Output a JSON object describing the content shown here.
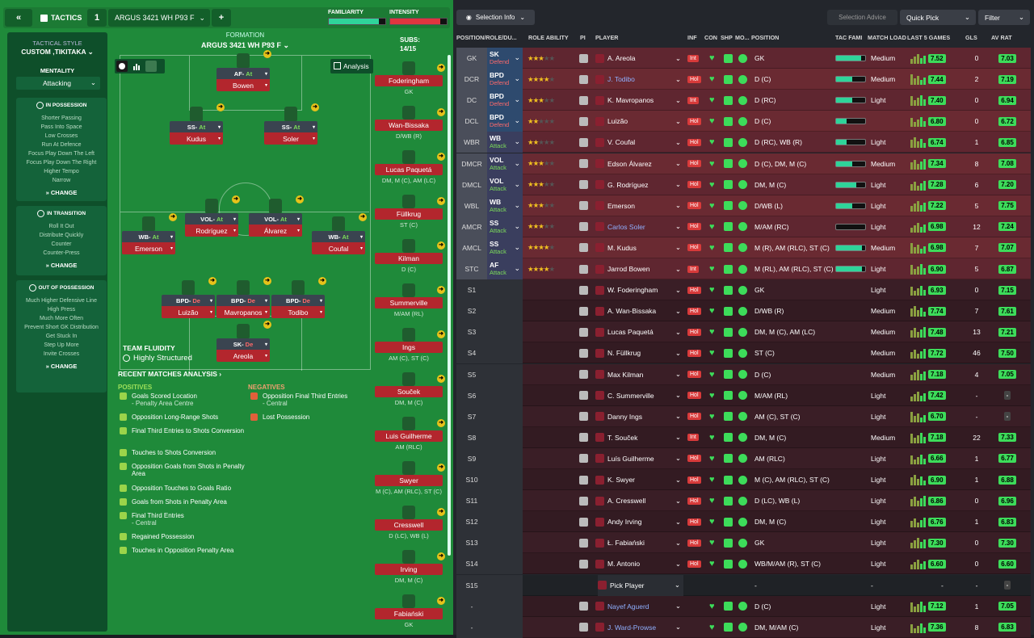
{
  "topbar": {
    "title": "TACTICS",
    "slot": "1",
    "tactic_name": "ARGUS 3421 WH P93 F",
    "add": "+",
    "familiarity": "FAMILIARITY",
    "intensity": "INTENSITY"
  },
  "side": {
    "style_label": "TACTICAL STYLE",
    "style": "CUSTOM ,TIKITAKA",
    "mentality_label": "MENTALITY",
    "mentality": "Attacking",
    "poss_title": "IN POSSESSION",
    "poss_items": [
      "Shorter Passing",
      "Pass Into Space",
      "Low Crosses",
      "Run At Defence",
      "Focus Play Down The Left",
      "Focus Play Down The Right",
      "Higher Tempo",
      "Narrow"
    ],
    "trans_title": "IN TRANSITION",
    "trans_items": [
      "Roll It Out",
      "Distribute Quickly",
      "Counter",
      "Counter-Press"
    ],
    "oop_title": "OUT OF POSSESSION",
    "oop_items": [
      "Much Higher Defensive Line",
      "High Press",
      "Much More Often",
      "Prevent Short GK Distribution",
      "Get Stuck In",
      "Step Up More",
      "Invite Crosses"
    ],
    "change": "CHANGE"
  },
  "formation": {
    "label": "FORMATION",
    "name": "ARGUS 3421  WH P93 F",
    "subs_label": "SUBS:",
    "subs": "14/15",
    "analysis": "Analysis"
  },
  "players": [
    {
      "role": "AF",
      "duty": "At",
      "name": "Bowen",
      "d": "at"
    },
    {
      "role": "SS",
      "duty": "At",
      "name": "Kudus",
      "d": "at"
    },
    {
      "role": "SS",
      "duty": "At",
      "name": "Soler",
      "d": "at"
    },
    {
      "role": "VOL",
      "duty": "At",
      "name": "Rodríguez",
      "d": "at"
    },
    {
      "role": "VOL",
      "duty": "At",
      "name": "Álvarez",
      "d": "at"
    },
    {
      "role": "WB",
      "duty": "At",
      "name": "Emerson",
      "d": "at"
    },
    {
      "role": "WB",
      "duty": "At",
      "name": "Coufal",
      "d": "at"
    },
    {
      "role": "BPD",
      "duty": "De",
      "name": "Luizão",
      "d": "de"
    },
    {
      "role": "BPD",
      "duty": "De",
      "name": "Mavropanos",
      "d": "de"
    },
    {
      "role": "BPD",
      "duty": "De",
      "name": "Todibo",
      "d": "de"
    },
    {
      "role": "SK",
      "duty": "De",
      "name": "Areola",
      "d": "de"
    }
  ],
  "fluidity": {
    "label": "TEAM FLUIDITY",
    "value": "Highly Structured"
  },
  "analysis": {
    "title": "RECENT MATCHES ANALYSIS ›",
    "pos_label": "POSITIVES",
    "neg_label": "NEGATIVES",
    "positives": [
      [
        "Goals Scored Location",
        "- Penalty Area Centre"
      ],
      [
        "Opposition Long-Range Shots",
        ""
      ],
      [
        "Final Third Entries to Shots Conversion",
        ""
      ],
      [
        "Touches to Shots Conversion",
        ""
      ],
      [
        "Opposition Goals from Shots in Penalty Area",
        ""
      ],
      [
        "Opposition Touches to Goals Ratio",
        ""
      ],
      [
        "Goals from Shots in Penalty Area",
        ""
      ],
      [
        "Final Third Entries",
        "- Central"
      ],
      [
        "Regained Possession",
        ""
      ],
      [
        "Touches in Opposition Penalty Area",
        ""
      ]
    ],
    "negatives": [
      [
        "Opposition Final Third Entries",
        "- Central"
      ],
      [
        "Lost Possession",
        ""
      ]
    ]
  },
  "subs": [
    {
      "name": "Foderingham",
      "pos": "GK"
    },
    {
      "name": "Wan-Bissaka",
      "pos": "D/WB (R)"
    },
    {
      "name": "Lucas Paquetá",
      "pos": "DM, M (C), AM (LC)"
    },
    {
      "name": "Füllkrug",
      "pos": "ST (C)"
    },
    {
      "name": "Kilman",
      "pos": "D (C)"
    },
    {
      "name": "Summerville",
      "pos": "M/AM (RL)"
    },
    {
      "name": "Ings",
      "pos": "AM (C), ST (C)"
    },
    {
      "name": "Souček",
      "pos": "DM, M (C)"
    },
    {
      "name": "Luis Guilherme",
      "pos": "AM (RLC)"
    },
    {
      "name": "Swyer",
      "pos": "M (C), AM (RLC), ST (C)"
    },
    {
      "name": "Cresswell",
      "pos": "D (LC), WB (L)"
    },
    {
      "name": "Irving",
      "pos": "DM, M (C)"
    },
    {
      "name": "Fabiański",
      "pos": "GK"
    }
  ],
  "right": {
    "selection_info": "Selection Info",
    "selection_advice": "Selection Advice",
    "quick_pick": "Quick Pick",
    "filter": "Filter",
    "cols": [
      "POSITION/ROLE/DU...",
      "ROLE ABILITY",
      "PI",
      "PLAYER",
      "INF",
      "CON",
      "SHP",
      "MO...",
      "POSITION",
      "TAC FAMI",
      "MATCH LOAD",
      "LAST 5 GAMES",
      "GLS",
      "AV RAT"
    ]
  },
  "rows": [
    {
      "p": "GK",
      "r": "SK",
      "d": "Defend",
      "s": 3,
      "h": 0,
      "n": "A. Areola",
      "inf": "Int",
      "pos": "GK",
      "fam": 0.85,
      "load": "Medium",
      "rat": "7.52",
      "g": "0",
      "av": "7.03",
      "k": "start"
    },
    {
      "p": "DCR",
      "r": "BPD",
      "d": "Defend",
      "s": 3.5,
      "h": 0,
      "n": "J. Todibo",
      "inf": "Hol",
      "pos": "D (C)",
      "fam": 0.55,
      "load": "Medium",
      "rat": "7.44",
      "g": "2",
      "av": "7.19",
      "k": "start",
      "blue": true
    },
    {
      "p": "DC",
      "r": "BPD",
      "d": "Defend",
      "s": 3,
      "h": 0,
      "n": "K. Mavropanos",
      "inf": "Int",
      "pos": "D (RC)",
      "fam": 0.55,
      "load": "Light",
      "rat": "7.40",
      "g": "0",
      "av": "6.94",
      "k": "start"
    },
    {
      "p": "DCL",
      "r": "BPD",
      "d": "Defend",
      "s": 2,
      "h": 0,
      "n": "Luizão",
      "inf": "Hol",
      "pos": "D (C)",
      "fam": 0.35,
      "load": "",
      "rat": "6.80",
      "g": "0",
      "av": "6.72",
      "k": "start"
    },
    {
      "p": "WBR",
      "r": "WB",
      "d": "Attack",
      "s": 2,
      "h": 0,
      "n": "V. Coufal",
      "inf": "Hol",
      "pos": "D (RC), WB (R)",
      "fam": 0.35,
      "load": "Light",
      "rat": "6.74",
      "g": "1",
      "av": "6.85",
      "k": "start"
    },
    {
      "p": "DMCR",
      "r": "VOL",
      "d": "Attack",
      "s": 2.5,
      "h": 0,
      "n": "Edson Álvarez",
      "inf": "Hol",
      "pos": "D (C), DM, M (C)",
      "fam": 0.55,
      "load": "Medium",
      "rat": "7.34",
      "g": "8",
      "av": "7.08",
      "k": "start"
    },
    {
      "p": "DMCL",
      "r": "VOL",
      "d": "Attack",
      "s": 3,
      "h": 0,
      "n": "G. Rodríguez",
      "inf": "Hol",
      "pos": "DM, M (C)",
      "fam": 0.7,
      "load": "Light",
      "rat": "7.28",
      "g": "6",
      "av": "7.20",
      "k": "start"
    },
    {
      "p": "WBL",
      "r": "WB",
      "d": "Attack",
      "s": 3,
      "h": 0,
      "n": "Emerson",
      "inf": "Hol",
      "pos": "D/WB (L)",
      "fam": 0.55,
      "load": "Light",
      "rat": "7.22",
      "g": "5",
      "av": "7.75",
      "k": "start"
    },
    {
      "p": "AMCR",
      "r": "SS",
      "d": "Attack",
      "s": 2.5,
      "h": 0,
      "n": "Carlos Soler",
      "inf": "Hol",
      "pos": "M/AM (RC)",
      "fam": 0,
      "load": "Light",
      "rat": "6.98",
      "g": "12",
      "av": "7.24",
      "k": "start",
      "blue": true
    },
    {
      "p": "AMCL",
      "r": "SS",
      "d": "Attack",
      "s": 3.5,
      "h": 0,
      "n": "M. Kudus",
      "inf": "Hol",
      "pos": "M (R), AM (RLC), ST (C)",
      "fam": 0.9,
      "load": "Medium",
      "rat": "6.98",
      "g": "7",
      "av": "7.07",
      "k": "start"
    },
    {
      "p": "STC",
      "r": "AF",
      "d": "Attack",
      "s": 3.5,
      "h": 0,
      "n": "Jarrod Bowen",
      "inf": "Int",
      "pos": "M (RL), AM (RLC), ST (C)",
      "fam": 0.9,
      "load": "Light",
      "rat": "6.90",
      "g": "5",
      "av": "6.87",
      "k": "start"
    },
    {
      "p": "S1",
      "n": "W. Foderingham",
      "inf": "Hol",
      "pos": "GK",
      "load": "Light",
      "rat": "6.93",
      "g": "0",
      "av": "7.15",
      "k": "sub"
    },
    {
      "p": "S2",
      "n": "A. Wan-Bissaka",
      "inf": "Hol",
      "pos": "D/WB (R)",
      "load": "Medium",
      "rat": "7.74",
      "g": "7",
      "av": "7.61",
      "k": "sub"
    },
    {
      "p": "S3",
      "n": "Lucas Paquetá",
      "inf": "Hol",
      "pos": "DM, M (C), AM (LC)",
      "load": "Medium",
      "rat": "7.48",
      "g": "13",
      "av": "7.21",
      "k": "sub"
    },
    {
      "p": "S4",
      "n": "N. Füllkrug",
      "inf": "Hol",
      "pos": "ST (C)",
      "load": "Medium",
      "rat": "7.72",
      "g": "46",
      "av": "7.50",
      "k": "sub"
    },
    {
      "p": "S5",
      "n": "Max Kilman",
      "inf": "Hol",
      "pos": "D (C)",
      "load": "Medium",
      "rat": "7.18",
      "g": "4",
      "av": "7.05",
      "k": "sub"
    },
    {
      "p": "S6",
      "n": "C. Summerville",
      "inf": "Hol",
      "pos": "M/AM (RL)",
      "load": "Light",
      "rat": "7.42",
      "g": "-",
      "av": "-",
      "k": "sub"
    },
    {
      "p": "S7",
      "n": "Danny Ings",
      "inf": "Hol",
      "pos": "AM (C), ST (C)",
      "load": "Light",
      "rat": "6.70",
      "g": "-",
      "av": "-",
      "k": "sub"
    },
    {
      "p": "S8",
      "n": "T. Souček",
      "inf": "Int",
      "pos": "DM, M (C)",
      "load": "Medium",
      "rat": "7.18",
      "g": "22",
      "av": "7.33",
      "k": "sub"
    },
    {
      "p": "S9",
      "n": "Luís Guilherme",
      "inf": "Hol",
      "pos": "AM (RLC)",
      "load": "Light",
      "rat": "6.66",
      "g": "1",
      "av": "6.77",
      "k": "sub"
    },
    {
      "p": "S10",
      "n": "K. Swyer",
      "inf": "Hol",
      "pos": "M (C), AM (RLC), ST (C)",
      "load": "Light",
      "rat": "6.90",
      "g": "1",
      "av": "6.88",
      "k": "sub"
    },
    {
      "p": "S11",
      "n": "A. Cresswell",
      "inf": "Hol",
      "pos": "D (LC), WB (L)",
      "load": "Light",
      "rat": "6.86",
      "g": "0",
      "av": "6.96",
      "k": "sub"
    },
    {
      "p": "S12",
      "n": "Andy Irving",
      "inf": "Hol",
      "pos": "DM, M (C)",
      "load": "Light",
      "rat": "6.76",
      "g": "1",
      "av": "6.83",
      "k": "sub"
    },
    {
      "p": "S13",
      "n": "Ł. Fabiański",
      "inf": "Hol",
      "pos": "GK",
      "load": "Light",
      "rat": "7.30",
      "g": "0",
      "av": "7.30",
      "k": "sub"
    },
    {
      "p": "S14",
      "n": "M. Antonio",
      "inf": "Hol",
      "pos": "WB/M/AM (R), ST (C)",
      "load": "Light",
      "rat": "6.60",
      "g": "0",
      "av": "6.60",
      "k": "sub"
    },
    {
      "p": "S15",
      "n": "Pick Player",
      "inf": "",
      "pos": "-",
      "load": "-",
      "rat": "-",
      "g": "-",
      "av": "-",
      "k": "empty"
    },
    {
      "p": "-",
      "n": "Nayef Aguerd",
      "inf": "",
      "pos": "D (C)",
      "load": "Light",
      "rat": "7.12",
      "g": "1",
      "av": "7.05",
      "k": "res",
      "blue": true
    },
    {
      "p": "-",
      "n": "J. Ward-Prowse",
      "inf": "",
      "pos": "DM, M/AM (C)",
      "load": "Light",
      "rat": "7.36",
      "g": "8",
      "av": "6.83",
      "k": "res",
      "blue": true
    }
  ]
}
